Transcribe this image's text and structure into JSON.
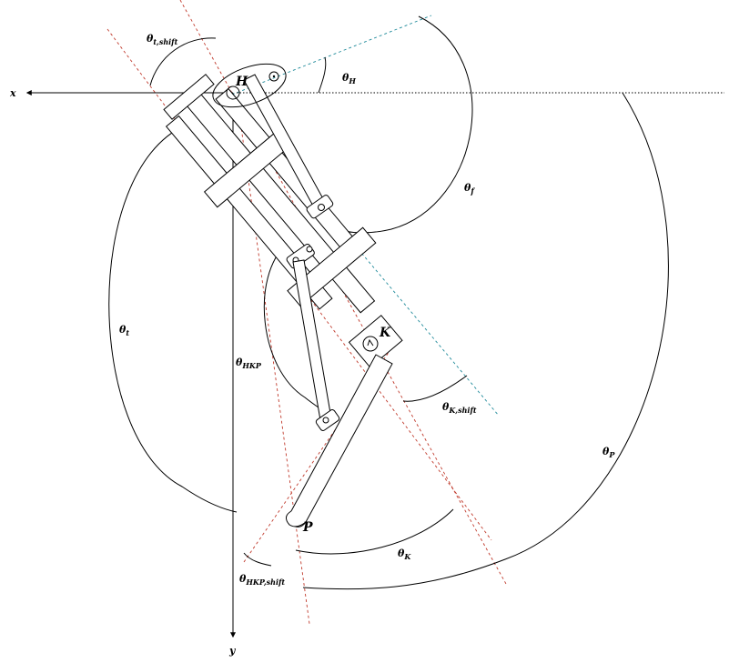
{
  "axes": {
    "x_label": "x",
    "y_label": "y"
  },
  "joints": {
    "hip": "H",
    "knee": "K",
    "foot": "P"
  },
  "angles": {
    "theta_t_shift": {
      "symbol": "θ",
      "sub": "t,shift"
    },
    "theta_H": {
      "symbol": "θ",
      "sub": "H"
    },
    "theta_f": {
      "symbol": "θ",
      "sub": "f"
    },
    "theta_t": {
      "symbol": "θ",
      "sub": "t"
    },
    "theta_HKP": {
      "symbol": "θ",
      "sub": "HKP"
    },
    "theta_K_shift": {
      "symbol": "θ",
      "sub": "K,shift"
    },
    "theta_P": {
      "symbol": "θ",
      "sub": "P"
    },
    "theta_K": {
      "symbol": "θ",
      "sub": "K"
    },
    "theta_HKP_shift": {
      "symbol": "θ",
      "sub": "HKP,shift"
    }
  },
  "colors": {
    "reference_lines": "#c0392b",
    "pushrod_axis": "#1f8a9a",
    "ink": "#000000"
  }
}
